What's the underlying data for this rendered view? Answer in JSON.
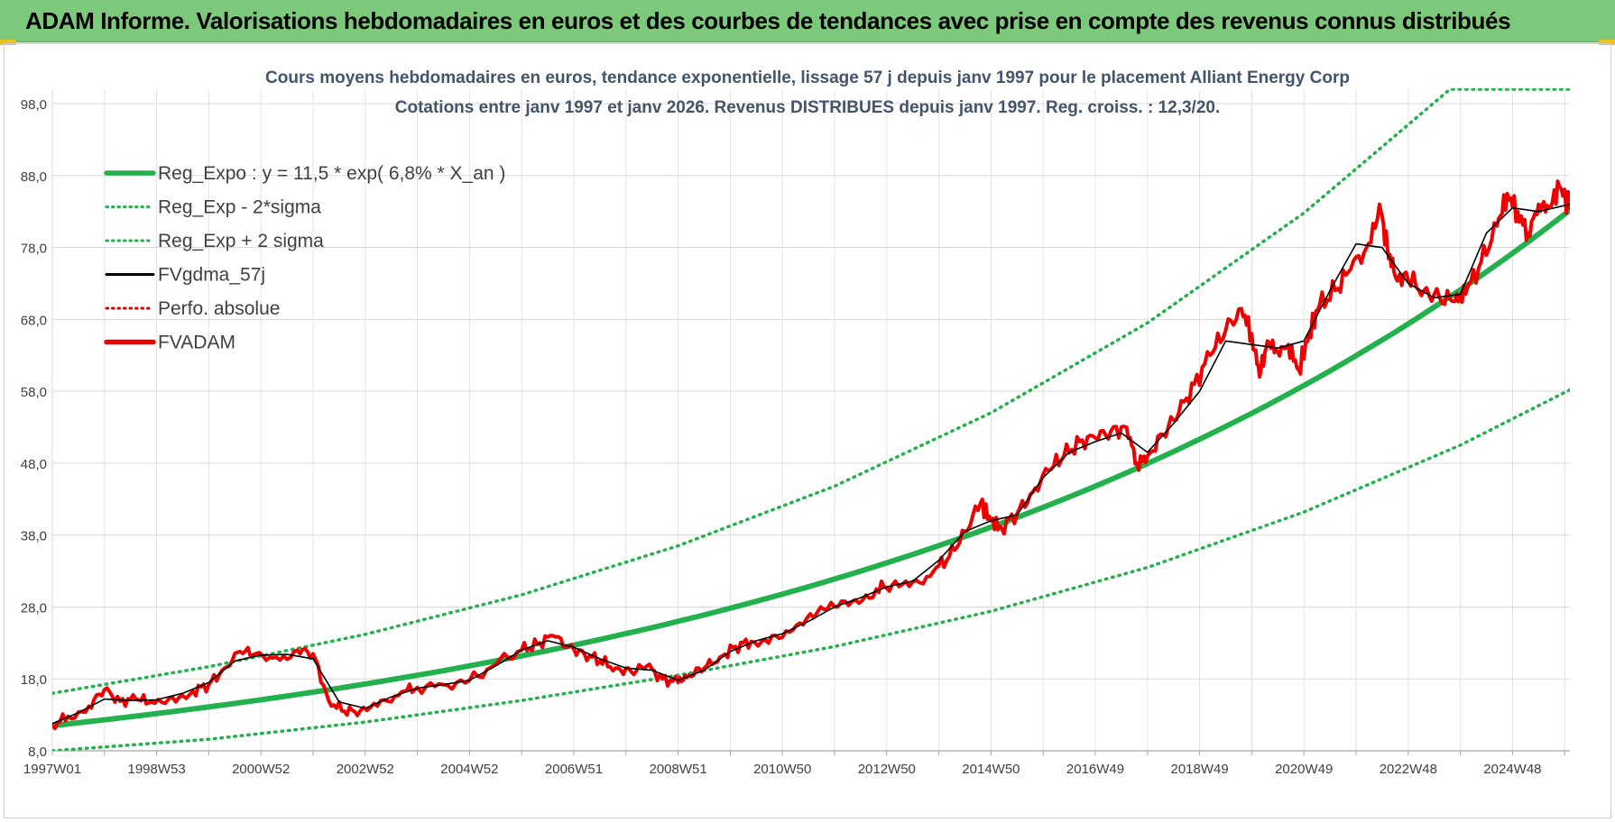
{
  "header": {
    "title": "ADAM Informe. Valorisations hebdomadaires en euros et des courbes de tendances avec prise en compte des revenus connus distribués"
  },
  "chart_data": {
    "type": "line",
    "title_line1": "Cours moyens hebdomadaires en euros, tendance exponentielle, lissage 57 j depuis janv 1997 pour le placement Alliant Energy Corp",
    "title_line2": "Cotations entre janv 1997 et janv 2026. Revenus DISTRIBUES depuis janv 1997. Reg. croiss. : 12,3/20.",
    "xlabel": "",
    "ylabel": "",
    "ylim": [
      8,
      98
    ],
    "xlim": [
      1997.0,
      2026.1
    ],
    "y_ticks": [
      "8,0",
      "18,0",
      "28,0",
      "38,0",
      "48,0",
      "58,0",
      "68,0",
      "78,0",
      "88,0",
      "98,0"
    ],
    "y_tick_values": [
      8,
      18,
      28,
      38,
      48,
      58,
      68,
      78,
      88,
      98
    ],
    "x_ticks": [
      "1997W01",
      "1998W53",
      "2000W52",
      "2002W52",
      "2004W52",
      "2006W51",
      "2008W51",
      "2010W50",
      "2012W50",
      "2014W50",
      "2016W49",
      "2018W49",
      "2020W49",
      "2022W48",
      "2024W48"
    ],
    "x_tick_years": [
      1997.0,
      1999.0,
      2001.0,
      2003.0,
      2005.0,
      2007.0,
      2009.0,
      2011.0,
      2013.0,
      2015.0,
      2017.0,
      2019.0,
      2021.0,
      2023.0,
      2025.0
    ],
    "grid": true,
    "legend_position": "top-left",
    "legend": [
      {
        "label": "Reg_Expo : y = 11,5 * exp( 6,8% *  X_an )",
        "color": "#22b14c",
        "style": "thick"
      },
      {
        "label": "Reg_Exp - 2*sigma",
        "color": "#22b14c",
        "style": "dotted"
      },
      {
        "label": "Reg_Exp + 2 sigma",
        "color": "#22b14c",
        "style": "dotted"
      },
      {
        "label": "FVgdma_57j",
        "color": "#000000",
        "style": "solid"
      },
      {
        "label": "Perfo. absolue",
        "color": "#e00000",
        "style": "dotted"
      },
      {
        "label": "FVADAM",
        "color": "#ee0000",
        "style": "thick"
      }
    ],
    "regression": {
      "a": 11.5,
      "rate": 0.068
    },
    "series": [
      {
        "name": "Reg_Expo : y = 11,5 * exp( 6,8% *  X_an )",
        "x": [
          1997.0,
          2000.0,
          2003.0,
          2006.0,
          2009.0,
          2012.0,
          2015.0,
          2018.0,
          2021.0,
          2024.0,
          2026.1
        ],
        "values": [
          11.5,
          14.1,
          17.3,
          21.3,
          26.1,
          32.0,
          39.2,
          48.2,
          59.1,
          72.5,
          83.5
        ]
      },
      {
        "name": "Reg_Exp - 2*sigma",
        "x": [
          1997.0,
          2000.0,
          2003.0,
          2006.0,
          2009.0,
          2012.0,
          2015.0,
          2018.0,
          2021.0,
          2024.0,
          2026.1
        ],
        "values": [
          8.0,
          9.6,
          12.0,
          15.0,
          18.5,
          22.5,
          27.4,
          33.5,
          41.2,
          50.5,
          58.2
        ]
      },
      {
        "name": "Reg_Exp + 2 sigma",
        "x": [
          1997.0,
          2000.0,
          2003.0,
          2006.0,
          2009.0,
          2012.0,
          2015.0,
          2018.0,
          2021.0,
          2022.5,
          2023.8,
          2026.1
        ],
        "values": [
          16.0,
          19.7,
          24.2,
          29.7,
          36.5,
          44.8,
          55.0,
          67.5,
          82.8,
          92.0,
          100.0,
          100.0
        ]
      },
      {
        "name": "FVADAM",
        "x": [
          1997.0,
          1997.3,
          1997.7,
          1998.0,
          1998.3,
          1998.6,
          1998.9,
          1999.3,
          1999.7,
          2000.0,
          2000.3,
          2000.6,
          2000.9,
          2001.3,
          2001.7,
          2002.0,
          2002.3,
          2002.6,
          2002.9,
          2003.3,
          2003.7,
          2004.0,
          2004.5,
          2005.0,
          2005.5,
          2006.0,
          2006.3,
          2006.6,
          2006.9,
          2007.2,
          2007.5,
          2007.8,
          2008.1,
          2008.4,
          2008.7,
          2009.0,
          2009.2,
          2009.5,
          2009.8,
          2010.1,
          2010.4,
          2010.8,
          2011.2,
          2011.6,
          2012.0,
          2012.4,
          2012.8,
          2013.1,
          2013.5,
          2013.9,
          2014.2,
          2014.5,
          2014.8,
          2015.0,
          2015.2,
          2015.5,
          2015.8,
          2016.1,
          2016.4,
          2016.7,
          2017.0,
          2017.3,
          2017.6,
          2017.8,
          2018.0,
          2018.3,
          2018.6,
          2018.9,
          2019.2,
          2019.5,
          2019.8,
          2020.0,
          2020.15,
          2020.3,
          2020.5,
          2020.7,
          2020.9,
          2021.1,
          2021.3,
          2021.6,
          2021.9,
          2022.2,
          2022.45,
          2022.6,
          2022.75,
          2023.0,
          2023.3,
          2023.6,
          2023.9,
          2024.1,
          2024.4,
          2024.7,
          2024.9,
          2025.1,
          2025.3,
          2025.5,
          2025.7,
          2025.9,
          2026.1
        ],
        "values": [
          11.5,
          12.8,
          14.2,
          16.5,
          14.9,
          15.2,
          14.8,
          15.5,
          16.3,
          17.2,
          19.5,
          21.8,
          21.5,
          21.0,
          22.0,
          21.5,
          15.0,
          13.5,
          13.5,
          15.0,
          16.2,
          16.8,
          17.2,
          17.8,
          20.0,
          22.0,
          22.8,
          24.0,
          22.5,
          21.5,
          20.5,
          19.5,
          19.0,
          19.8,
          18.0,
          17.5,
          18.5,
          19.5,
          21.0,
          22.5,
          23.2,
          24.0,
          24.8,
          26.5,
          28.0,
          29.0,
          30.5,
          31.0,
          31.5,
          33.0,
          35.0,
          38.5,
          42.5,
          40.0,
          39.0,
          41.0,
          44.0,
          47.0,
          49.0,
          51.0,
          51.5,
          52.5,
          53.0,
          48.0,
          49.0,
          52.0,
          55.0,
          59.0,
          63.0,
          66.5,
          69.5,
          66.0,
          60.0,
          65.0,
          63.5,
          64.5,
          61.0,
          66.0,
          70.0,
          72.0,
          75.0,
          78.0,
          84.0,
          78.0,
          74.0,
          73.5,
          72.0,
          71.0,
          70.5,
          71.5,
          76.0,
          81.0,
          85.5,
          83.0,
          80.0,
          84.0,
          83.5,
          86.5,
          83.5
        ]
      },
      {
        "name": "FVgdma_57j",
        "x": [
          1997.0,
          1997.5,
          1998.0,
          1998.5,
          1999.0,
          1999.5,
          2000.0,
          2000.5,
          2001.0,
          2001.5,
          2002.0,
          2002.5,
          2003.0,
          2003.5,
          2004.0,
          2004.5,
          2005.0,
          2005.5,
          2006.0,
          2006.5,
          2007.0,
          2007.5,
          2008.0,
          2008.5,
          2009.0,
          2009.5,
          2010.0,
          2010.5,
          2011.0,
          2011.5,
          2012.0,
          2012.5,
          2013.0,
          2013.5,
          2014.0,
          2014.5,
          2015.0,
          2015.5,
          2016.0,
          2016.5,
          2017.0,
          2017.5,
          2018.0,
          2018.5,
          2019.0,
          2019.5,
          2020.0,
          2020.5,
          2021.0,
          2021.5,
          2022.0,
          2022.5,
          2023.0,
          2023.5,
          2024.0,
          2024.5,
          2025.0,
          2025.5,
          2026.1
        ],
        "values": [
          11.8,
          13.3,
          15.2,
          15.0,
          15.1,
          16.0,
          17.5,
          20.5,
          21.3,
          21.4,
          20.8,
          14.8,
          13.9,
          15.5,
          16.7,
          17.2,
          17.8,
          19.8,
          22.0,
          23.3,
          22.4,
          20.8,
          19.5,
          19.2,
          17.8,
          19.2,
          21.8,
          23.3,
          24.3,
          26.0,
          28.0,
          29.3,
          30.8,
          31.6,
          34.5,
          38.5,
          40.0,
          40.8,
          46.0,
          49.5,
          51.0,
          52.2,
          49.5,
          53.5,
          58.0,
          65.0,
          64.5,
          64.0,
          65.0,
          72.0,
          78.5,
          78.0,
          73.0,
          71.0,
          71.5,
          80.0,
          83.5,
          83.0,
          84.0
        ]
      }
    ]
  }
}
